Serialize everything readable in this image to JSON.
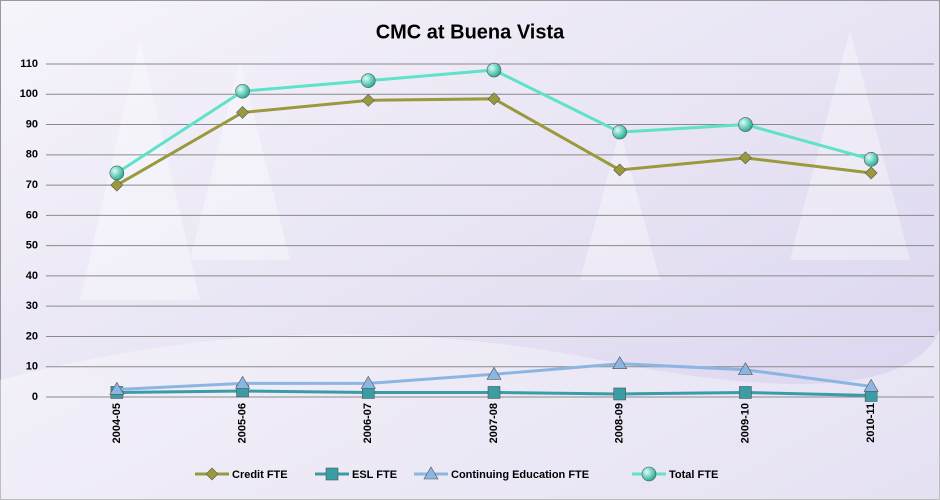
{
  "chart_data": {
    "type": "line",
    "title": "CMC at Buena Vista",
    "categories": [
      "2004-05",
      "2005-06",
      "2006-07",
      "2007-08",
      "2008-09",
      "2009-10",
      "2010-11"
    ],
    "series": [
      {
        "name": "Credit FTE",
        "color": "#9a9a3c",
        "marker": "diamond",
        "values": [
          70,
          94,
          98,
          98.5,
          75,
          79,
          74
        ]
      },
      {
        "name": "ESL FTE",
        "color": "#3a9ca4",
        "marker": "square",
        "values": [
          1.5,
          2,
          1.5,
          1.5,
          1,
          1.5,
          0.5
        ]
      },
      {
        "name": "Continuing Education FTE",
        "color": "#8cb6e2",
        "marker": "triangle",
        "values": [
          2.5,
          4.5,
          4.5,
          7.5,
          11,
          9,
          3.5
        ]
      },
      {
        "name": "Total FTE",
        "color": "#5ee2c8",
        "marker": "circle",
        "values": [
          74,
          101,
          104.5,
          108,
          87.5,
          90,
          78.5
        ]
      }
    ],
    "ylim": [
      0,
      110
    ],
    "yticks": [
      0,
      10,
      20,
      30,
      40,
      50,
      60,
      70,
      80,
      90,
      100,
      110
    ],
    "grid": true,
    "legend": "bottom"
  }
}
